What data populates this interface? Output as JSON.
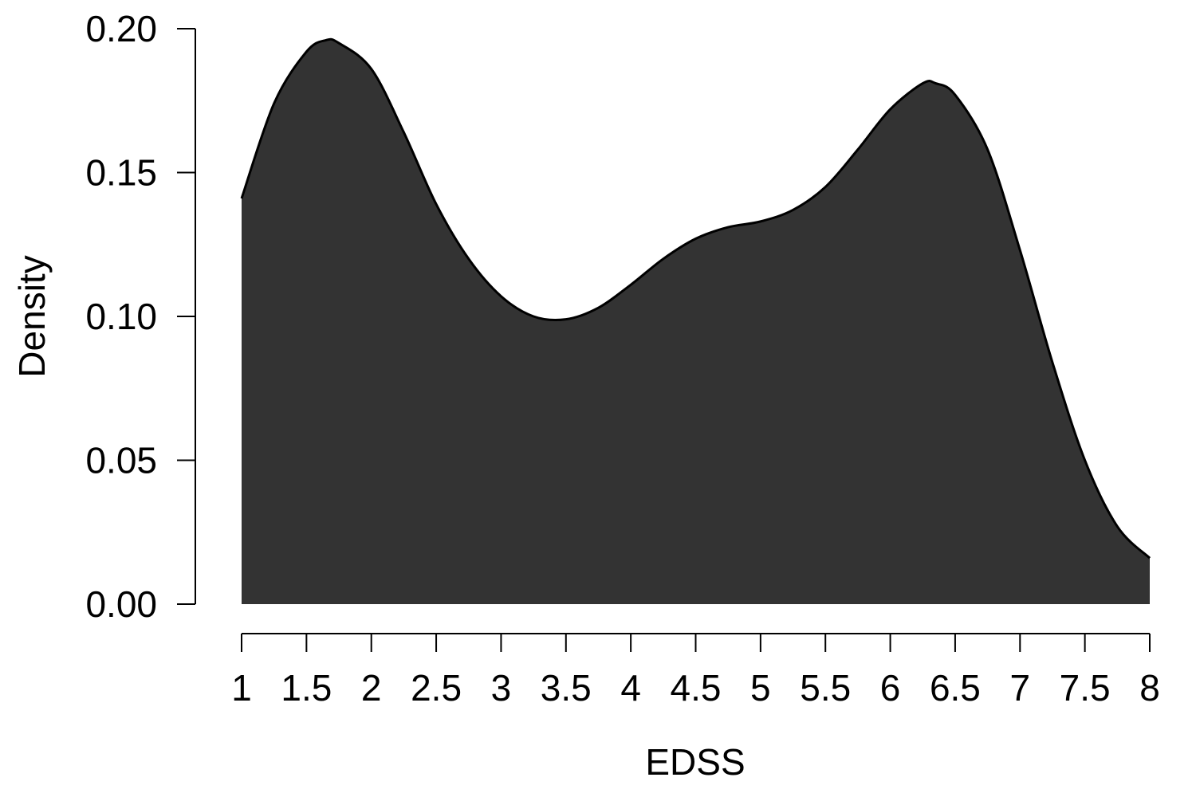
{
  "chart_data": {
    "type": "area",
    "title": "",
    "xlabel": "EDSS",
    "ylabel": "Density",
    "xlim": [
      1,
      8
    ],
    "ylim": [
      0,
      0.2
    ],
    "x_ticks": [
      "1",
      "1.5",
      "2",
      "2.5",
      "3",
      "3.5",
      "4",
      "4.5",
      "5",
      "5.5",
      "6",
      "6.5",
      "7",
      "7.5",
      "8"
    ],
    "y_ticks": [
      "0.00",
      "0.05",
      "0.10",
      "0.15",
      "0.20"
    ],
    "grid": false,
    "legend": "none",
    "fill_color": "#333333",
    "line_color": "#000000",
    "series": [
      {
        "x": [
          1.0,
          1.25,
          1.5,
          1.65,
          1.75,
          2.0,
          2.25,
          2.5,
          2.75,
          3.0,
          3.25,
          3.5,
          3.75,
          4.0,
          4.25,
          4.5,
          4.75,
          5.0,
          5.25,
          5.5,
          5.75,
          6.0,
          6.25,
          6.35,
          6.5,
          6.75,
          7.0,
          7.25,
          7.5,
          7.75,
          8.0
        ],
        "values": [
          0.141,
          0.174,
          0.192,
          0.196,
          0.195,
          0.186,
          0.164,
          0.139,
          0.12,
          0.107,
          0.1,
          0.099,
          0.103,
          0.111,
          0.12,
          0.127,
          0.131,
          0.133,
          0.137,
          0.145,
          0.158,
          0.172,
          0.181,
          0.181,
          0.177,
          0.158,
          0.123,
          0.084,
          0.05,
          0.027,
          0.016
        ]
      }
    ]
  }
}
